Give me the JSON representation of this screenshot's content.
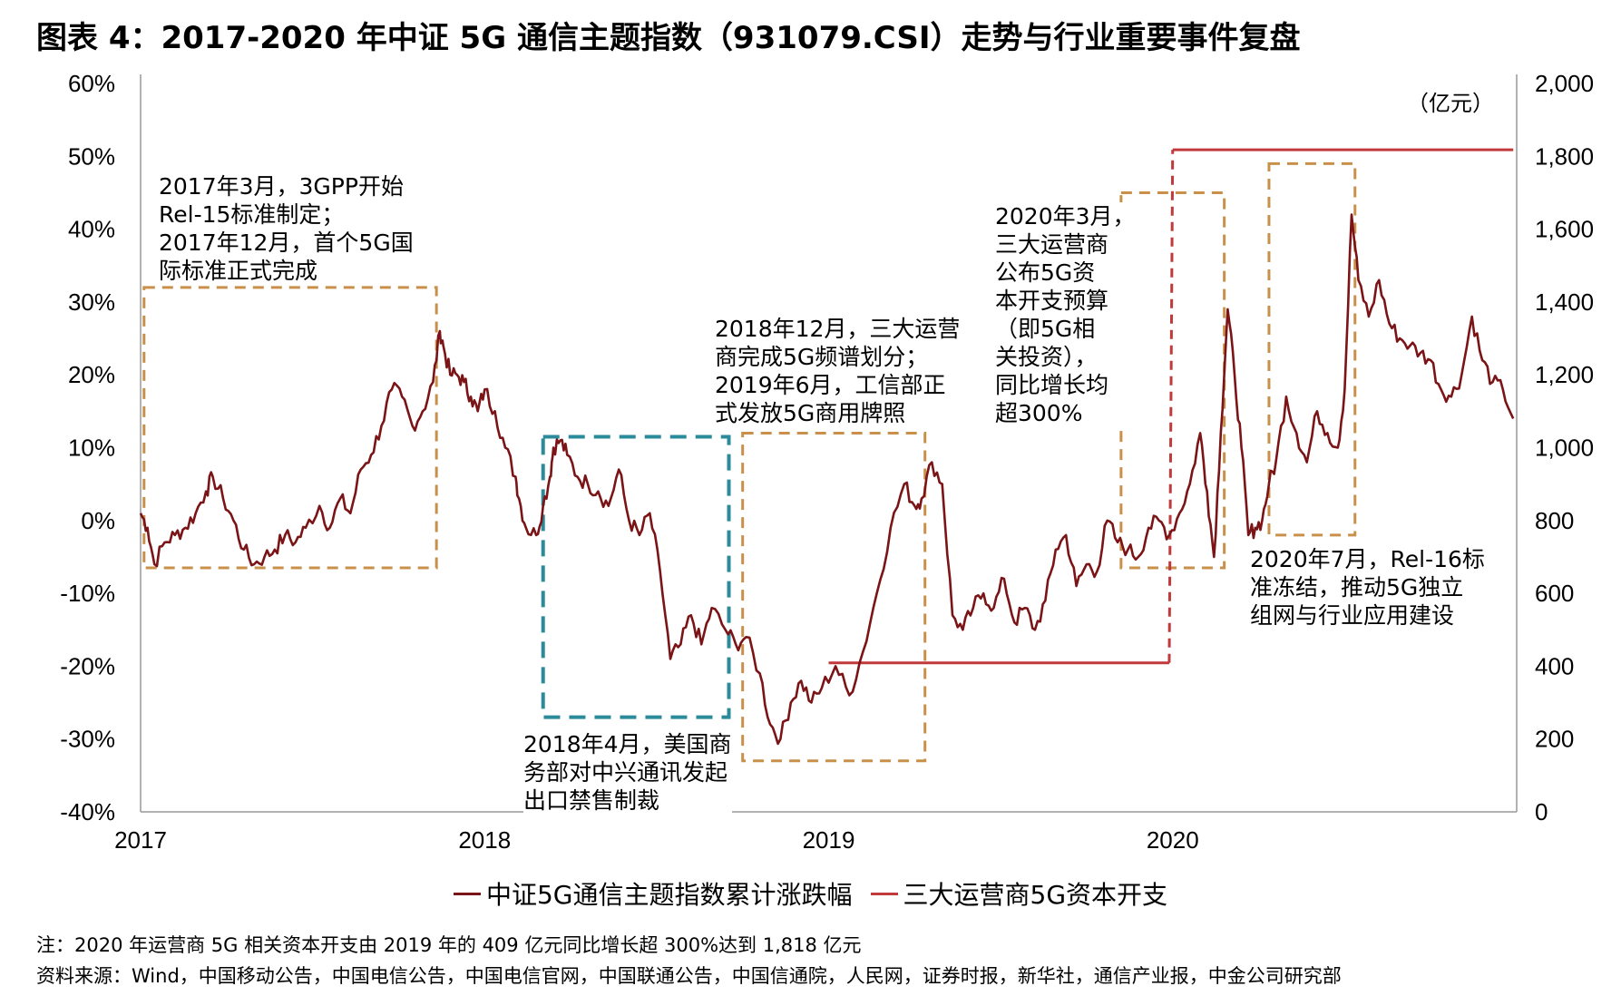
{
  "title": "图表 4：2017-2020 年中证 5G 通信主题指数（931079.CSI）走势与行业重要事件复盘",
  "chart_data": {
    "type": "line",
    "x_ticks": [
      "2017",
      "2018",
      "2019",
      "2020"
    ],
    "y_left": {
      "ticks": [
        "60%",
        "50%",
        "40%",
        "30%",
        "20%",
        "10%",
        "0%",
        "-10%",
        "-20%",
        "-30%",
        "-40%"
      ],
      "range": [
        -40,
        60
      ]
    },
    "y_right": {
      "ticks": [
        "2,000",
        "1,800",
        "1,600",
        "1,400",
        "1,200",
        "1,000",
        "800",
        "600",
        "400",
        "200",
        "0"
      ],
      "range": [
        0,
        2000
      ],
      "unit": "（亿元）"
    },
    "series": [
      {
        "name": "中证5G通信主题指数累计涨跌幅",
        "color": "#7b1416",
        "axis": "left",
        "x": [
          2017.0,
          2017.02,
          2017.04,
          2017.07,
          2017.1,
          2017.13,
          2017.16,
          2017.19,
          2017.21,
          2017.24,
          2017.27,
          2017.3,
          2017.33,
          2017.36,
          2017.39,
          2017.42,
          2017.45,
          2017.48,
          2017.52,
          2017.55,
          2017.58,
          2017.61,
          2017.64,
          2017.67,
          2017.7,
          2017.73,
          2017.76,
          2017.79,
          2017.82,
          2017.85,
          2017.87,
          2017.88,
          2017.9,
          2017.92,
          2017.94,
          2017.96,
          2017.98,
          2018.0,
          2018.03,
          2018.06,
          2018.09,
          2018.1,
          2018.12,
          2018.15,
          2018.17,
          2018.19,
          2018.2,
          2018.22,
          2018.24,
          2018.27,
          2018.3,
          2018.33,
          2018.36,
          2018.39,
          2018.42,
          2018.45,
          2018.48,
          2018.51,
          2018.54,
          2018.57,
          2018.6,
          2018.63,
          2018.66,
          2018.7,
          2018.73,
          2018.76,
          2018.8,
          2018.83,
          2018.86,
          2018.89,
          2018.92,
          2018.95,
          2018.98,
          2019.02,
          2019.06,
          2019.1,
          2019.14,
          2019.18,
          2019.22,
          2019.25,
          2019.27,
          2019.3,
          2019.33,
          2019.36,
          2019.39,
          2019.42,
          2019.45,
          2019.48,
          2019.51,
          2019.54,
          2019.57,
          2019.6,
          2019.63,
          2019.66,
          2019.69,
          2019.72,
          2019.75,
          2019.78,
          2019.81,
          2019.84,
          2019.87,
          2019.9,
          2019.93,
          2019.96,
          2019.99,
          2020.02,
          2020.05,
          2020.08,
          2020.1,
          2020.12,
          2020.14,
          2020.16,
          2020.18,
          2020.2,
          2020.22,
          2020.24,
          2020.26,
          2020.28,
          2020.3,
          2020.33,
          2020.36,
          2020.39,
          2020.42,
          2020.45,
          2020.48,
          2020.5,
          2020.52,
          2020.54,
          2020.57,
          2020.6,
          2020.63,
          2020.66,
          2020.69,
          2020.72,
          2020.75,
          2020.78,
          2020.81,
          2020.84,
          2020.87,
          2020.9,
          2020.93,
          2020.96,
          2020.99
        ],
        "y": [
          1,
          -1,
          -6,
          -3,
          -2,
          -1,
          1,
          4,
          6,
          3,
          0,
          -4,
          -6,
          -5,
          -4,
          -2,
          -3,
          -1,
          2,
          -1,
          3,
          1,
          7,
          9,
          13,
          18,
          17,
          13,
          15,
          19,
          26,
          24,
          20,
          20,
          19,
          17,
          15,
          18,
          15,
          10,
          6,
          3,
          -1,
          -2,
          2,
          6,
          10,
          11,
          9,
          6,
          5,
          4,
          2,
          7,
          0,
          -2,
          1,
          -7,
          -19,
          -17,
          -13,
          -17,
          -12,
          -15,
          -17,
          -16,
          -21,
          -28,
          -30,
          -25,
          -22,
          -25,
          -23,
          -20,
          -24,
          -18,
          -10,
          -1,
          5,
          2,
          3,
          8,
          5,
          -13,
          -15,
          -12,
          -10,
          -12,
          -8,
          -14,
          -12,
          -15,
          -11,
          -4,
          -2,
          -9,
          -6,
          -7,
          0,
          -3,
          -4,
          -5,
          -1,
          0,
          -2,
          1,
          5,
          12,
          4,
          -5,
          12,
          29,
          20,
          10,
          -2,
          -1,
          0,
          5,
          8,
          17,
          12,
          8,
          15,
          12,
          10,
          18,
          42,
          33,
          28,
          33,
          27,
          25,
          24,
          23,
          22,
          18,
          17,
          20,
          28,
          22,
          19,
          18,
          14
        ]
      },
      {
        "name": "三大运营商5G资本开支",
        "color": "#c0393b",
        "axis": "right",
        "x": [
          2019.0,
          2019.99,
          2020.0,
          2020.99
        ],
        "y": [
          409,
          409,
          1818,
          1818
        ]
      }
    ],
    "annotations": [
      {
        "id": "a1",
        "text": "2017年3月，3GPP开始\nRel-15标准制定；\n2017年12月，首个5G国\n际标准正式完成",
        "box_x": [
          2017.01,
          2017.86
        ],
        "box_y": [
          -6.5,
          32
        ],
        "color": "#c8904a"
      },
      {
        "id": "a2",
        "text": "2018年4月，美国商\n务部对中兴通讯发起\n出口禁售制裁",
        "box_x": [
          2018.17,
          2018.71
        ],
        "box_y": [
          -27,
          11.5
        ],
        "color": "#2b8b9a"
      },
      {
        "id": "a3",
        "text": "2018年12月，三大运营\n商完成5G频谱划分；\n2019年6月，工信部正\n式发放5G商用牌照",
        "box_x": [
          2018.75,
          2019.28
        ],
        "box_y": [
          -33,
          12
        ],
        "color": "#c8904a"
      },
      {
        "id": "a4",
        "text": "2020年3月，\n三大运营商\n公布5G资\n本开支预算\n（即5G相\n关投资），\n同比增长均\n超300%",
        "box_x": [
          2019.85,
          2020.15
        ],
        "box_y": [
          -6.5,
          45
        ],
        "color": "#c8904a"
      },
      {
        "id": "a5",
        "text": "2020年7月，Rel-16标\n准冻结，推动5G独立\n组网与行业应用建设",
        "box_x": [
          2020.28,
          2020.53
        ],
        "box_y": [
          -2,
          49
        ],
        "color": "#c8904a"
      }
    ]
  },
  "legend": [
    {
      "label": "中证5G通信主题指数累计涨跌幅",
      "color": "#7b1416"
    },
    {
      "label": "三大运营商5G资本开支",
      "color": "#c0393b"
    }
  ],
  "notes": {
    "note": "注：2020 年运营商 5G 相关资本开支由 2019 年的 409 亿元同比增长超 300%达到 1,818 亿元",
    "source": "资料来源：Wind，中国移动公告，中国电信公告，中国电信官网，中国联通公告，中国信通院，人民网，证券时报，新华社，通信产业报，中金公司研究部"
  }
}
